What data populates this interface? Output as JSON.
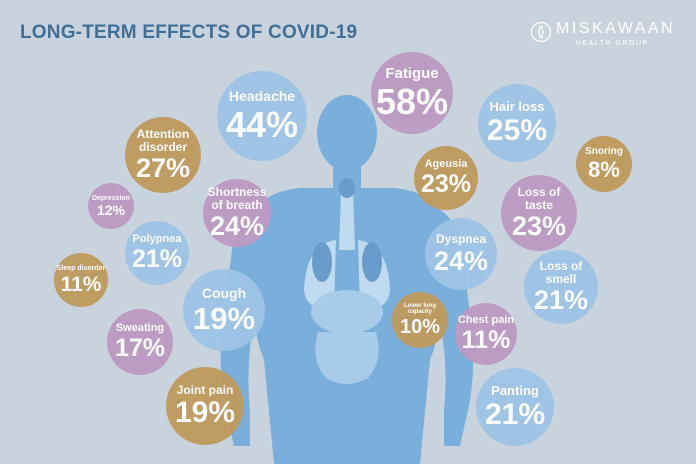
{
  "title": "LONG-TERM EFFECTS OF COVID-19",
  "logo": {
    "name": "MISKAWAAN",
    "sub": "HEALTH GROUP"
  },
  "colors": {
    "background": "#c9d3de",
    "blue": "#9ec4e6",
    "purple": "#bd9ac2",
    "gold": "#bf9a5b",
    "body": "#7aaedb",
    "title": "#3f6e97"
  },
  "chart_data": {
    "type": "bubble",
    "title": "LONG-TERM EFFECTS OF COVID-19",
    "unit": "%",
    "items": [
      {
        "label": "Fatigue",
        "value": 58,
        "display": "58%",
        "color": "purple"
      },
      {
        "label": "Headache",
        "value": 44,
        "display": "44%",
        "color": "blue"
      },
      {
        "label": "Attention disorder",
        "value": 27,
        "display": "27%",
        "color": "gold"
      },
      {
        "label": "Hair loss",
        "value": 25,
        "display": "25%",
        "color": "blue"
      },
      {
        "label": "Shortness of breath",
        "value": 24,
        "display": "24%",
        "color": "purple"
      },
      {
        "label": "Dyspnea",
        "value": 24,
        "display": "24%",
        "color": "blue"
      },
      {
        "label": "Ageusia",
        "value": 23,
        "display": "23%",
        "color": "gold"
      },
      {
        "label": "Loss of taste",
        "value": 23,
        "display": "23%",
        "color": "purple"
      },
      {
        "label": "Polypnea",
        "value": 21,
        "display": "21%",
        "color": "blue"
      },
      {
        "label": "Loss of smell",
        "value": 21,
        "display": "21%",
        "color": "blue"
      },
      {
        "label": "Panting",
        "value": 21,
        "display": "21%",
        "color": "blue"
      },
      {
        "label": "Cough",
        "value": 19,
        "display": "19%",
        "color": "blue"
      },
      {
        "label": "Joint pain",
        "value": 19,
        "display": "19%",
        "color": "gold"
      },
      {
        "label": "Sweating",
        "value": 17,
        "display": "17%",
        "color": "purple"
      },
      {
        "label": "Depression",
        "value": 12,
        "display": "12%",
        "color": "purple"
      },
      {
        "label": "Sleep disorder",
        "value": 11,
        "display": "11%",
        "color": "gold"
      },
      {
        "label": "Chest pain",
        "value": 11,
        "display": "11%",
        "color": "purple"
      },
      {
        "label": "Lower lung capacity",
        "value": 10,
        "display": "10%",
        "color": "gold"
      },
      {
        "label": "Snoring",
        "value": 8,
        "display": "8%",
        "color": "gold"
      }
    ]
  }
}
